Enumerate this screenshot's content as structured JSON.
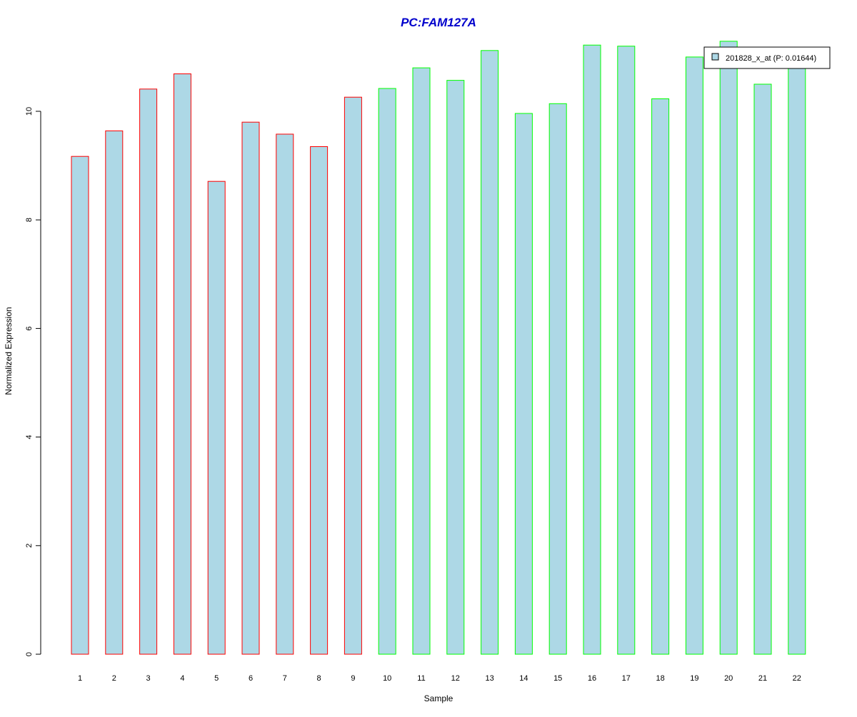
{
  "chart_data": {
    "type": "bar",
    "title": "PC:FAM127A",
    "xlabel": "Sample",
    "ylabel": "Normalized Expression",
    "categories": [
      "1",
      "2",
      "3",
      "4",
      "5",
      "6",
      "7",
      "8",
      "9",
      "10",
      "11",
      "12",
      "13",
      "14",
      "15",
      "16",
      "17",
      "18",
      "19",
      "20",
      "21",
      "22"
    ],
    "series": [
      {
        "name": "201828_x_at (P: 0.01644)",
        "values": [
          9.17,
          9.64,
          10.41,
          10.69,
          8.71,
          9.8,
          9.58,
          9.35,
          10.26,
          10.42,
          10.8,
          10.57,
          11.12,
          9.96,
          10.14,
          11.22,
          11.2,
          10.23,
          11.0,
          11.29,
          10.5,
          10.97
        ]
      }
    ],
    "groups": [
      1,
      1,
      1,
      1,
      1,
      1,
      1,
      1,
      1,
      2,
      2,
      2,
      2,
      2,
      2,
      2,
      2,
      2,
      2,
      2,
      2,
      2
    ],
    "ylim": [
      0,
      11.3
    ],
    "yticks": [
      0,
      2,
      4,
      6,
      8,
      10
    ],
    "legend_position": "top-right",
    "grid": false,
    "colors": {
      "title": "#0000cc",
      "bar_fill": "#add8e6",
      "group1_border": "#ff0000",
      "group2_border": "#00ff00"
    }
  }
}
